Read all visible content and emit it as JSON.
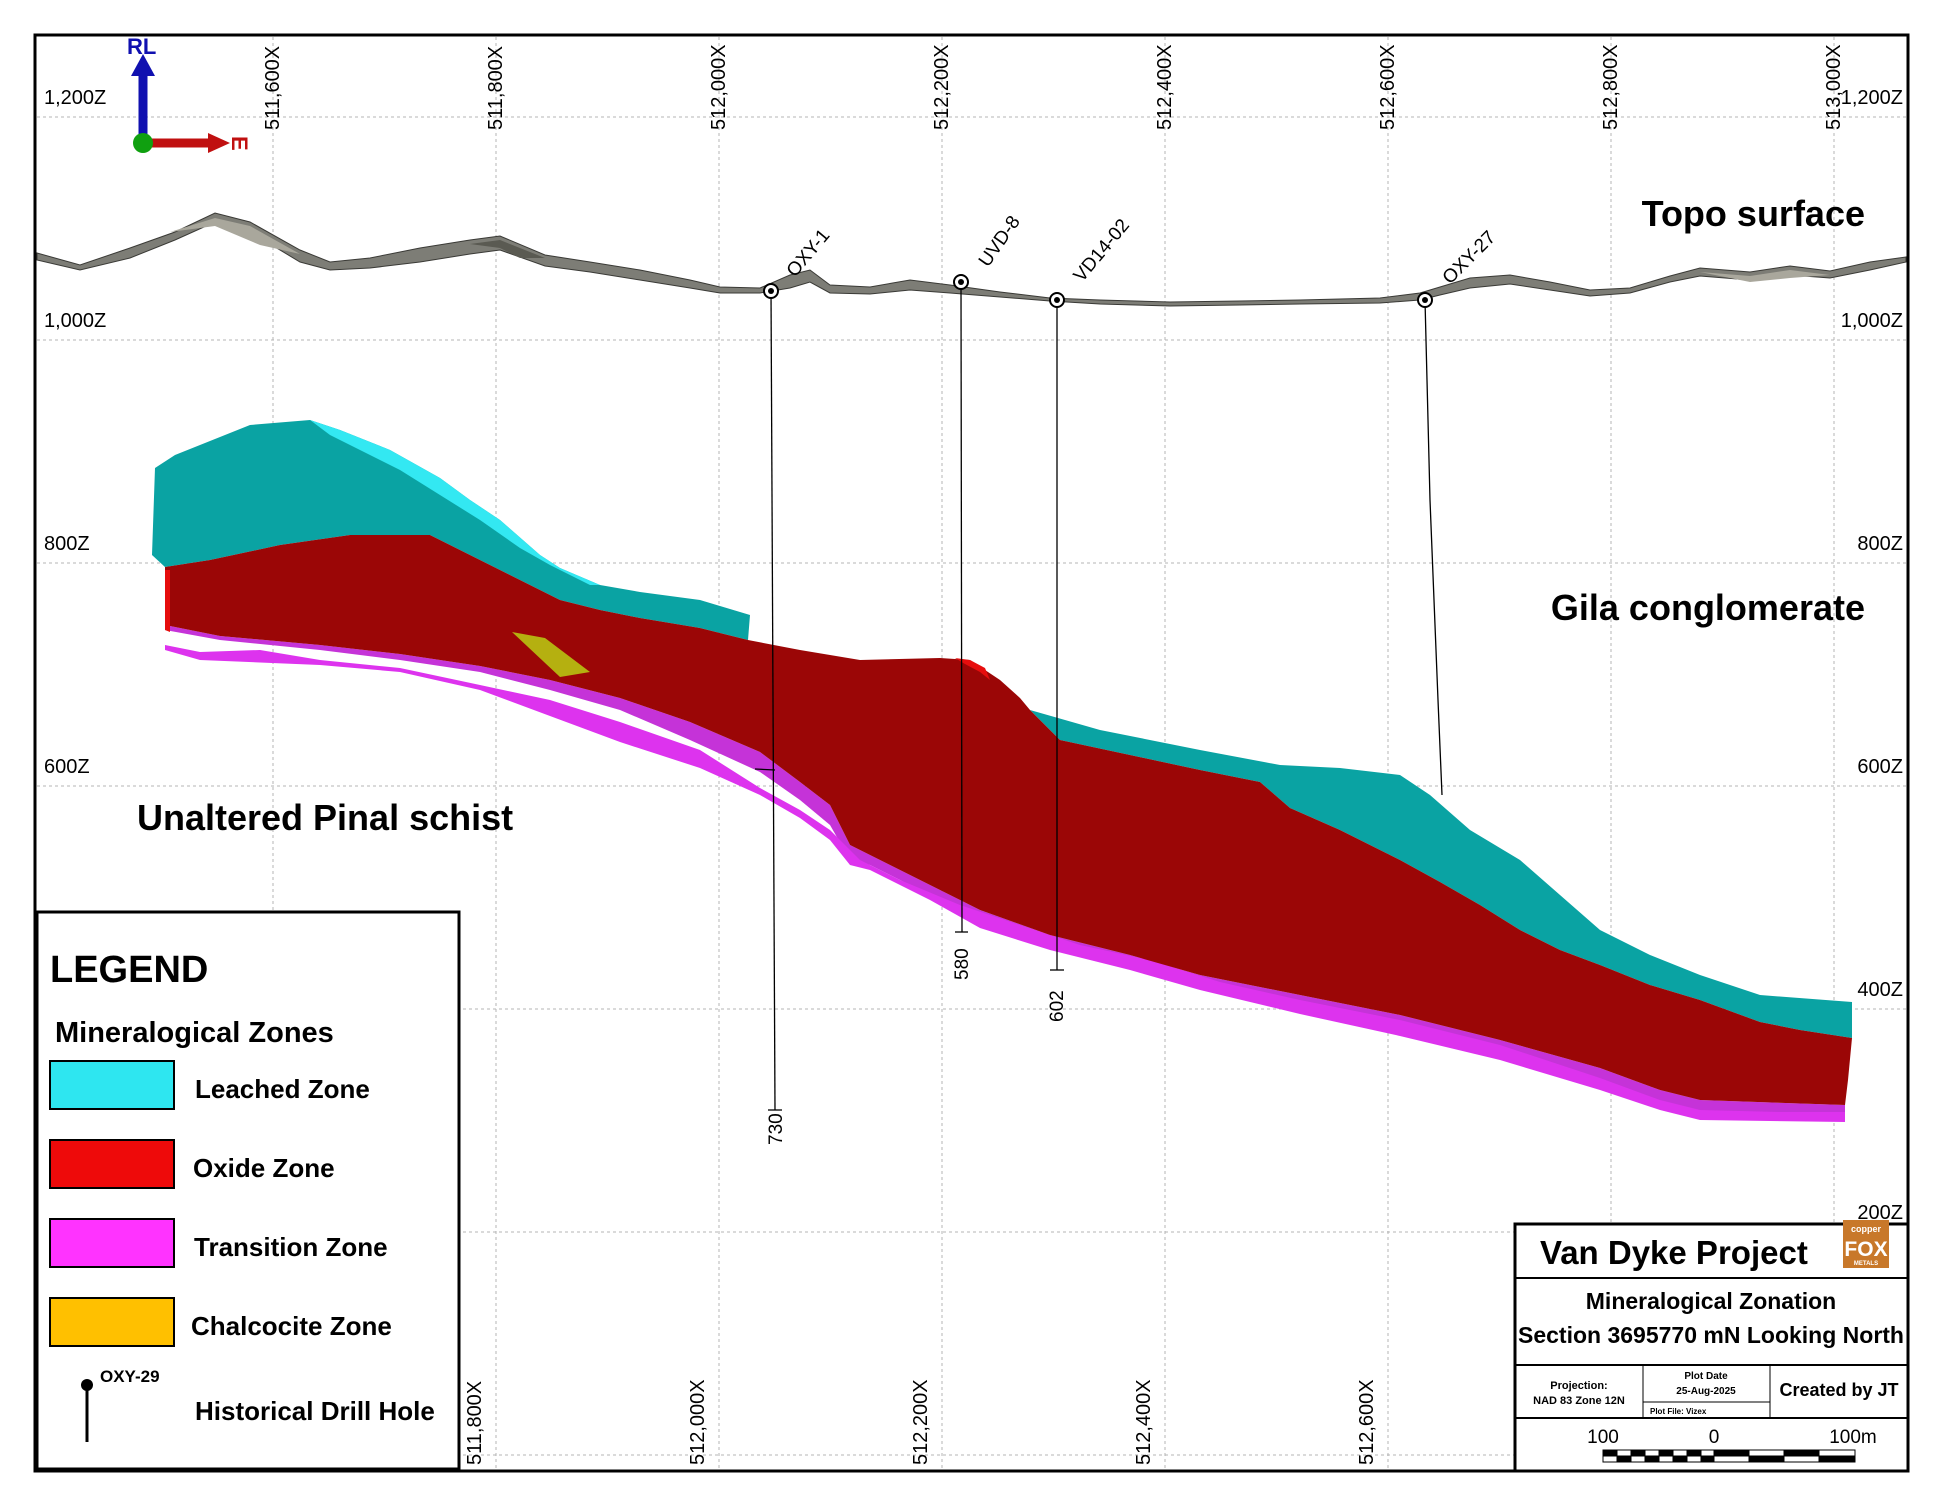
{
  "axes": {
    "easting_labels_top": [
      "511,600X",
      "511,800X",
      "512,000X",
      "512,200X",
      "512,400X",
      "512,600X",
      "512,800X",
      "513,000X"
    ],
    "easting_labels_bottom": [
      "511,800X",
      "512,000X",
      "512,200X",
      "512,400X",
      "512,600X"
    ],
    "elevation_labels_left": [
      "1,200Z",
      "1,000Z",
      "800Z",
      "600Z"
    ],
    "elevation_labels_right": [
      "1,200Z",
      "1,000Z",
      "800Z",
      "600Z",
      "400Z",
      "200Z"
    ]
  },
  "compass": {
    "up_label": "RL",
    "east_label": "E"
  },
  "geology_labels": {
    "topo": "Topo surface",
    "gila": "Gila conglomerate",
    "pinal": "Unaltered Pinal schist"
  },
  "drill_holes": [
    {
      "name": "OXY-1",
      "depth_label": "730"
    },
    {
      "name": "UVD-8",
      "depth_label": "580"
    },
    {
      "name": "VD14-02",
      "depth_label": "602"
    },
    {
      "name": "OXY-27",
      "depth_label": ""
    }
  ],
  "legend": {
    "title": "LEGEND",
    "subtitle": "Mineralogical Zones",
    "items": [
      {
        "label": "Leached Zone",
        "color": "#2ee6f0"
      },
      {
        "label": "Oxide Zone",
        "color": "#ee0a0a"
      },
      {
        "label": "Transition Zone",
        "color": "#ff33ff"
      },
      {
        "label": "Chalcocite Zone",
        "color": "#ffc000"
      }
    ],
    "hole_example": "OXY-29",
    "hole_label": "Historical Drill Hole"
  },
  "title_block": {
    "project": "Van Dyke Project",
    "logo_text_top": "copper",
    "logo_text_main": "FOX",
    "logo_text_bottom": "METALS",
    "title_line1": "Mineralogical Zonation",
    "title_line2": "Section 3695770 mN Looking North",
    "projection_label": "Projection:",
    "projection_value": "NAD 83 Zone 12N",
    "plot_date_label": "Plot Date",
    "plot_date_value": "25-Aug-2025",
    "plot_file": "Plot File: Vizex",
    "created_by": "Created by JT",
    "scale_left": "100",
    "scale_mid": "0",
    "scale_right": "100m"
  },
  "colors": {
    "leached_render": "#0a9a9a",
    "oxide_render": "#9b0606",
    "transition_render": "#cc33dd",
    "chalcocite_render": "#b5b010",
    "logo": "#c8782a"
  }
}
